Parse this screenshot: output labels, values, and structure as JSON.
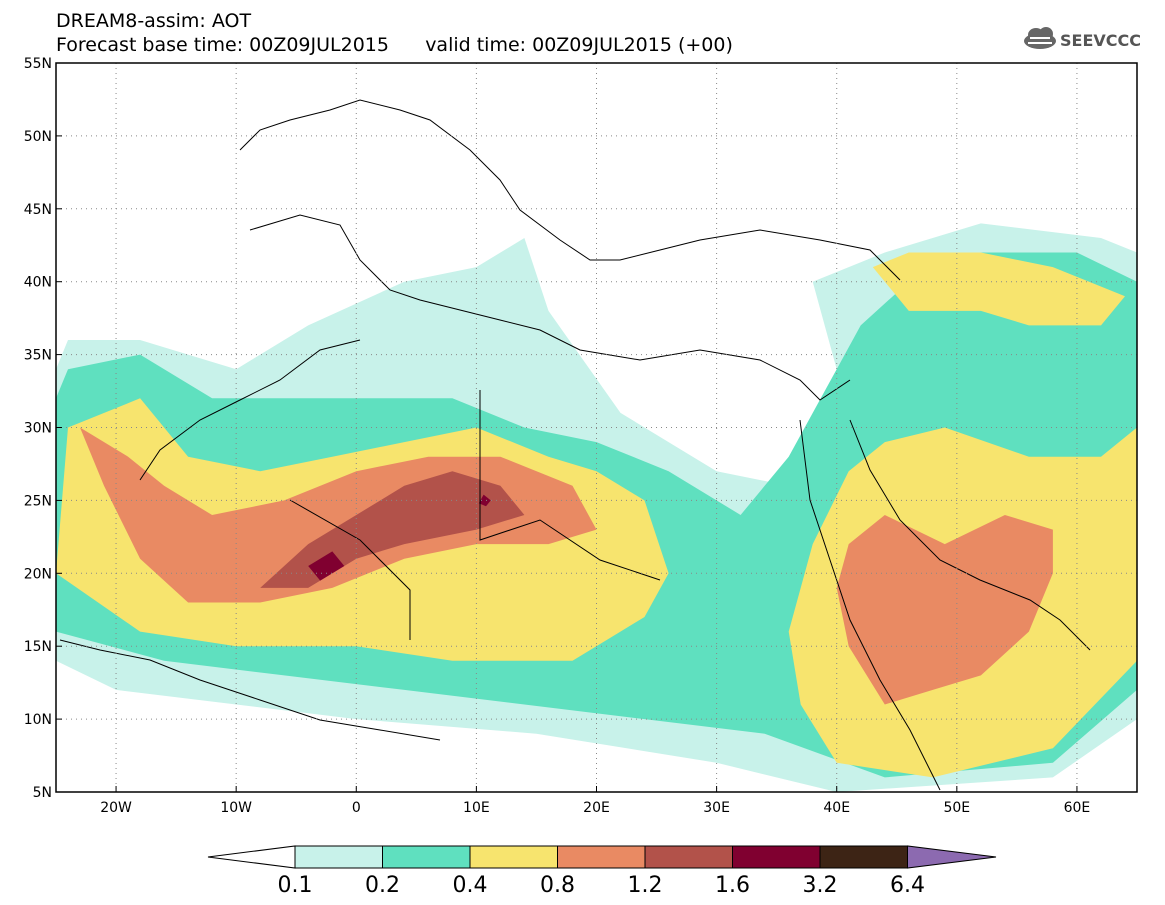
{
  "header": {
    "line1": "DREAM8-assim: AOT",
    "line2": "Forecast base time: 00Z09JUL2015      valid time: 00Z09JUL2015 (+00)",
    "logo_text": "SEEVCCC"
  },
  "map": {
    "lon_range": [
      -25,
      65
    ],
    "lat_range": [
      5,
      55
    ],
    "lon_ticks": [
      {
        "value": -20,
        "label": "20W"
      },
      {
        "value": -10,
        "label": "10W"
      },
      {
        "value": 0,
        "label": "0"
      },
      {
        "value": 10,
        "label": "10E"
      },
      {
        "value": 20,
        "label": "20E"
      },
      {
        "value": 30,
        "label": "30E"
      },
      {
        "value": 40,
        "label": "40E"
      },
      {
        "value": 50,
        "label": "50E"
      },
      {
        "value": 60,
        "label": "60E"
      }
    ],
    "lat_ticks": [
      {
        "value": 5,
        "label": "5N"
      },
      {
        "value": 10,
        "label": "10N"
      },
      {
        "value": 15,
        "label": "15N"
      },
      {
        "value": 20,
        "label": "20N"
      },
      {
        "value": 25,
        "label": "25N"
      },
      {
        "value": 30,
        "label": "30N"
      },
      {
        "value": 35,
        "label": "35N"
      },
      {
        "value": 40,
        "label": "40N"
      },
      {
        "value": 45,
        "label": "45N"
      },
      {
        "value": 50,
        "label": "50N"
      },
      {
        "value": 55,
        "label": "55N"
      }
    ],
    "grid": true
  },
  "legend": {
    "labels": [
      "0.1",
      "0.2",
      "0.4",
      "0.8",
      "1.2",
      "1.6",
      "3.2",
      "6.4"
    ],
    "colors": {
      "under": "#ffffff",
      "b1": "#c8f2ea",
      "b2": "#5fe0bf",
      "b3": "#f7e46e",
      "b4": "#e98a63",
      "b5": "#b2524a",
      "b6": "#800030",
      "b7": "#3d2415",
      "over": "#8c6ab0"
    }
  },
  "chart_data": {
    "type": "heatmap",
    "title": "DREAM8-assim: AOT",
    "subtitle": "Forecast base time: 00Z09JUL2015      valid time: 00Z09JUL2015 (+00)",
    "levels": [
      0.1,
      0.2,
      0.4,
      0.8,
      1.2,
      1.6,
      3.2,
      6.4
    ],
    "x_range": [
      -25,
      65
    ],
    "y_range": [
      5,
      55
    ],
    "regions": [
      {
        "level": 0.1,
        "lonlat": [
          [
            -24,
            36
          ],
          [
            -18,
            36
          ],
          [
            -10,
            34
          ],
          [
            -4,
            37
          ],
          [
            4,
            40
          ],
          [
            10,
            41
          ],
          [
            14,
            43
          ],
          [
            16,
            38
          ],
          [
            22,
            31
          ],
          [
            30,
            27
          ],
          [
            36,
            26
          ],
          [
            40,
            34
          ],
          [
            38,
            40
          ],
          [
            44,
            42
          ],
          [
            52,
            44
          ],
          [
            62,
            43
          ],
          [
            65,
            42
          ],
          [
            65,
            10
          ],
          [
            58,
            6
          ],
          [
            40,
            5
          ],
          [
            30,
            7
          ],
          [
            15,
            9
          ],
          [
            0,
            10
          ],
          [
            -10,
            11
          ],
          [
            -20,
            12
          ],
          [
            -25,
            14
          ],
          [
            -25,
            34
          ]
        ]
      },
      {
        "level": 0.2,
        "lonlat": [
          [
            -24,
            34
          ],
          [
            -18,
            35
          ],
          [
            -12,
            32
          ],
          [
            -6,
            32
          ],
          [
            2,
            32
          ],
          [
            8,
            32
          ],
          [
            14,
            30
          ],
          [
            20,
            29
          ],
          [
            26,
            27
          ],
          [
            32,
            24
          ],
          [
            36,
            28
          ],
          [
            40,
            34
          ],
          [
            42,
            37
          ],
          [
            46,
            40
          ],
          [
            52,
            42
          ],
          [
            60,
            42
          ],
          [
            65,
            40
          ],
          [
            65,
            12
          ],
          [
            58,
            7
          ],
          [
            44,
            6
          ],
          [
            34,
            9
          ],
          [
            24,
            10
          ],
          [
            14,
            11
          ],
          [
            4,
            12
          ],
          [
            -6,
            13
          ],
          [
            -16,
            14
          ],
          [
            -25,
            16
          ],
          [
            -25,
            32
          ]
        ]
      },
      {
        "level": 0.4,
        "lonlat": [
          [
            -24,
            30
          ],
          [
            -18,
            32
          ],
          [
            -14,
            28
          ],
          [
            -8,
            27
          ],
          [
            -2,
            28
          ],
          [
            4,
            29
          ],
          [
            10,
            30
          ],
          [
            16,
            28
          ],
          [
            20,
            27
          ],
          [
            24,
            25
          ],
          [
            26,
            20
          ],
          [
            24,
            17
          ],
          [
            18,
            14
          ],
          [
            8,
            14
          ],
          [
            0,
            15
          ],
          [
            -10,
            15
          ],
          [
            -18,
            16
          ],
          [
            -25,
            20
          ]
        ]
      },
      {
        "level": 0.4,
        "lonlat": [
          [
            38,
            22
          ],
          [
            41,
            27
          ],
          [
            44,
            29
          ],
          [
            49,
            30
          ],
          [
            56,
            28
          ],
          [
            62,
            28
          ],
          [
            65,
            30
          ],
          [
            65,
            14
          ],
          [
            58,
            8
          ],
          [
            48,
            6
          ],
          [
            40,
            7
          ],
          [
            37,
            11
          ],
          [
            36,
            16
          ]
        ]
      },
      {
        "level": 0.4,
        "lonlat": [
          [
            43,
            41
          ],
          [
            46,
            42
          ],
          [
            52,
            42
          ],
          [
            58,
            41
          ],
          [
            64,
            39
          ],
          [
            62,
            37
          ],
          [
            56,
            37
          ],
          [
            52,
            38
          ],
          [
            46,
            38
          ]
        ]
      },
      {
        "level": 0.8,
        "lonlat": [
          [
            -23,
            30
          ],
          [
            -21,
            26
          ],
          [
            -18,
            21
          ],
          [
            -14,
            18
          ],
          [
            -8,
            18
          ],
          [
            -2,
            19
          ],
          [
            4,
            21
          ],
          [
            10,
            22
          ],
          [
            16,
            22
          ],
          [
            20,
            23
          ],
          [
            18,
            26
          ],
          [
            12,
            28
          ],
          [
            6,
            28
          ],
          [
            0,
            27
          ],
          [
            -6,
            25
          ],
          [
            -12,
            24
          ],
          [
            -16,
            26
          ],
          [
            -19,
            28
          ]
        ]
      },
      {
        "level": 0.8,
        "lonlat": [
          [
            41,
            22
          ],
          [
            44,
            24
          ],
          [
            49,
            22
          ],
          [
            54,
            24
          ],
          [
            58,
            23
          ],
          [
            58,
            20
          ],
          [
            56,
            16
          ],
          [
            52,
            13
          ],
          [
            48,
            12
          ],
          [
            44,
            11
          ],
          [
            41,
            15
          ],
          [
            40,
            19
          ]
        ]
      },
      {
        "level": 1.2,
        "lonlat": [
          [
            -8,
            19
          ],
          [
            -4,
            22
          ],
          [
            0,
            24
          ],
          [
            4,
            26
          ],
          [
            8,
            27
          ],
          [
            12,
            26
          ],
          [
            14,
            24
          ],
          [
            10,
            23
          ],
          [
            4,
            22
          ],
          [
            0,
            21
          ],
          [
            -4,
            19
          ]
        ]
      },
      {
        "level": 1.6,
        "lonlat": [
          [
            -4,
            20.5
          ],
          [
            -2,
            21.5
          ],
          [
            -1,
            20.5
          ],
          [
            -3,
            19.5
          ]
        ]
      },
      {
        "level": 1.6,
        "lonlat": [
          [
            10.6,
            25.4
          ],
          [
            11.2,
            25
          ],
          [
            10.8,
            24.6
          ],
          [
            10.2,
            24.8
          ]
        ]
      }
    ]
  }
}
